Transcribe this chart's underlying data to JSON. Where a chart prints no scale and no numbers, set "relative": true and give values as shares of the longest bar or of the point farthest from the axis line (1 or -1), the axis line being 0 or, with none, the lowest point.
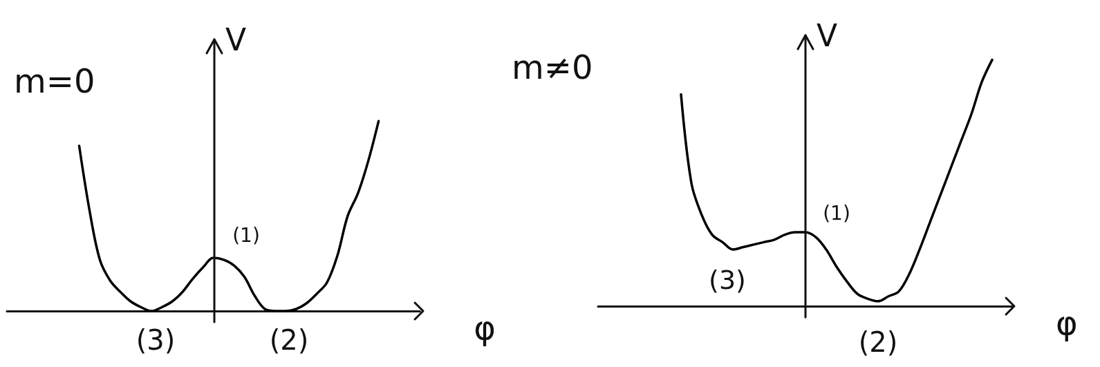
{
  "chart_data": [
    {
      "type": "line",
      "title": "m=0",
      "xlabel": "φ",
      "ylabel": "V",
      "relative": true,
      "categories": [
        null,
        null,
        null,
        null,
        null,
        null,
        null,
        null,
        null,
        null,
        null,
        null,
        null,
        null,
        null,
        null,
        null,
        null,
        null,
        null,
        null,
        null,
        null,
        null,
        null,
        null,
        null,
        null,
        null,
        null,
        null,
        null,
        null,
        null,
        null,
        null,
        null,
        null,
        null,
        null,
        null
      ],
      "series": [
        {
          "color": "#000000",
          "values": [
            null,
            null,
            null,
            null,
            null,
            null,
            null,
            0.87,
            0.53,
            0.27,
            0.16,
            0.1,
            0.05,
            0.02,
            0,
            0.02,
            0.05,
            0.1,
            0.17,
            0.23,
            0.28,
            0.27,
            0.24,
            0.18,
            0.08,
            0.01,
            0,
            0,
            0.01,
            0.04,
            0.09,
            0.15,
            0.29,
            0.5,
            0.62,
            0.79,
            1,
            null,
            null,
            null,
            null
          ]
        }
      ],
      "annotations": [
        "(1)",
        "(3)",
        "(2)"
      ]
    },
    {
      "type": "line",
      "title": "m≠0",
      "xlabel": "φ",
      "ylabel": "V",
      "relative": true,
      "categories": [
        null,
        null,
        null,
        null,
        null,
        null,
        null,
        null,
        null,
        null,
        null,
        null,
        null,
        null,
        null,
        null,
        null,
        null,
        null,
        null,
        null,
        null,
        null,
        null,
        null,
        null,
        null,
        null,
        null,
        null,
        null,
        null,
        null,
        null,
        null,
        null,
        null,
        null,
        null,
        null,
        null
      ],
      "series": [
        {
          "color": "#000000",
          "values": [
            null,
            null,
            null,
            null,
            null,
            null,
            null,
            null,
            0.86,
            0.5,
            0.37,
            0.29,
            0.26,
            0.23,
            0.24,
            0.25,
            0.26,
            0.27,
            0.29,
            0.3,
            0.3,
            0.28,
            0.23,
            0.16,
            0.1,
            0.05,
            0.03,
            0.02,
            0.04,
            0.06,
            0.13,
            0.23,
            0.34,
            0.45,
            0.56,
            0.67,
            0.78,
            0.91,
            1,
            null,
            null
          ]
        }
      ],
      "annotations": [
        "(1)",
        "(3)",
        "(2)"
      ]
    }
  ]
}
